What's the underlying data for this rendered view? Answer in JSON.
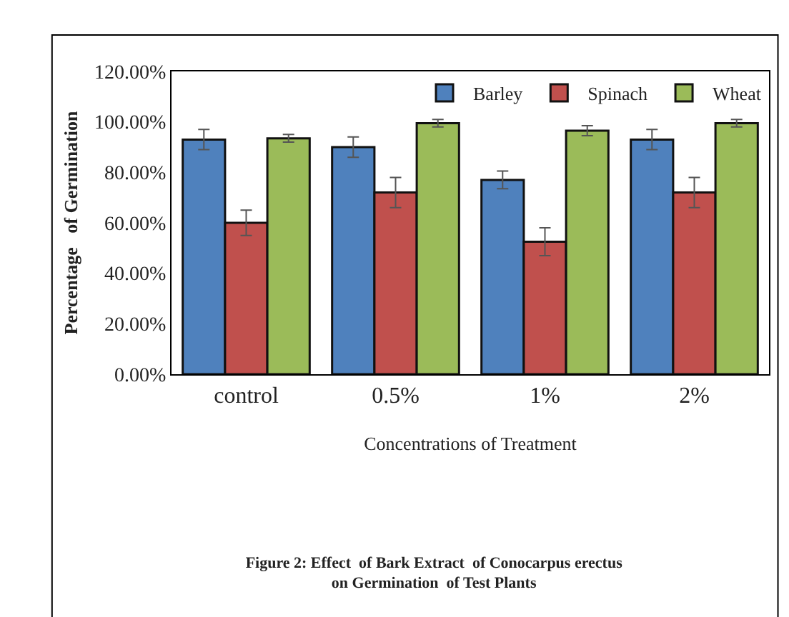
{
  "chart_data": {
    "type": "bar",
    "title": "Figure 2: Effect  of Bark Extract  of Conocarpus erectus\non Germination  of Test Plants",
    "xlabel": "Concentrations of Treatment",
    "ylabel": "Percentage   of Germination",
    "categories": [
      "control",
      "0.5%",
      "1%",
      "2%"
    ],
    "series": [
      {
        "name": "Barley",
        "color": "#4f81bd",
        "values": [
          93,
          90,
          77,
          93
        ],
        "errors": [
          4,
          4,
          3.5,
          4
        ]
      },
      {
        "name": "Spinach",
        "color": "#c0504d",
        "values": [
          60,
          72,
          52.5,
          72
        ],
        "errors": [
          5,
          6,
          5.5,
          6
        ]
      },
      {
        "name": "Wheat",
        "color": "#9bbb59",
        "values": [
          93.5,
          99.5,
          96.5,
          99.5
        ],
        "errors": [
          1.5,
          1.5,
          2,
          1.5
        ]
      }
    ],
    "ylim": [
      0,
      120
    ],
    "yticks": [
      {
        "value": 0,
        "label": "0.00%"
      },
      {
        "value": 20,
        "label": "20.00%"
      },
      {
        "value": 40,
        "label": "40.00%"
      },
      {
        "value": 60,
        "label": "60.00%"
      },
      {
        "value": 80,
        "label": "80.00%"
      },
      {
        "value": 100,
        "label": "100.00%"
      },
      {
        "value": 120,
        "label": "120.00%"
      }
    ],
    "grid": false,
    "legend": "top right"
  }
}
